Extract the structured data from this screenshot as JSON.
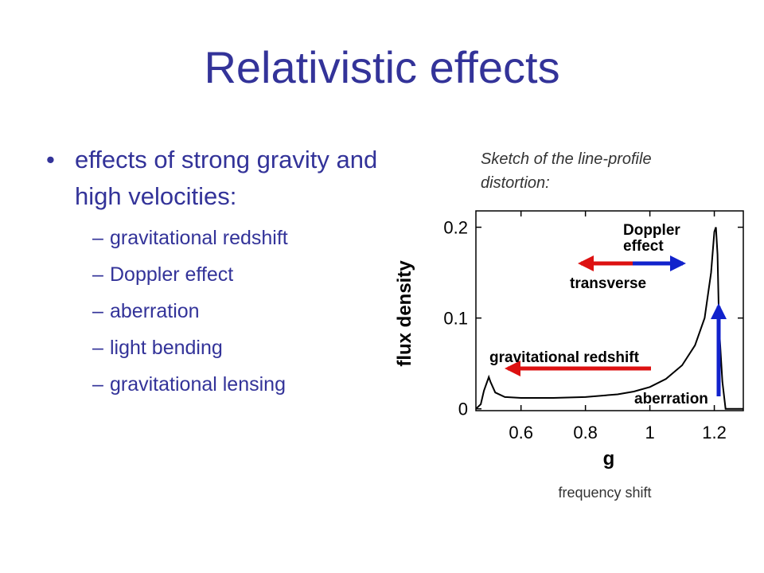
{
  "slide": {
    "title": "Relativistic effects",
    "bullet_marker": "•",
    "sub_marker": "–",
    "main_bullet": "effects of strong gravity and high velocities:",
    "sub_bullets": [
      "gravitational redshift",
      "Doppler effect",
      "aberration",
      "light bending",
      "gravitational lensing"
    ],
    "sketch_caption": "Sketch of the line-profile distortion:",
    "freq_caption": "frequency shift",
    "colors": {
      "text": "#333399",
      "arrow_red": "#dd1111",
      "arrow_blue": "#1122cc"
    }
  },
  "chart_data": {
    "type": "line",
    "xlabel": "g",
    "ylabel": "flux density",
    "xlim": [
      0.46,
      1.29
    ],
    "ylim": [
      -0.002,
      0.218
    ],
    "x_ticks": [
      0.6,
      0.8,
      1,
      1.2
    ],
    "x_tick_labels": [
      "0.6",
      "0.8",
      "1",
      "1.2"
    ],
    "y_ticks": [
      0,
      0.1,
      0.2
    ],
    "y_tick_labels": [
      "0",
      "0.1",
      "0.2"
    ],
    "grid": false,
    "series": [
      {
        "x": [
          0.46,
          0.475,
          0.485,
          0.5,
          0.505,
          0.52,
          0.55,
          0.6,
          0.7,
          0.8,
          0.9,
          0.95,
          1.0,
          1.05,
          1.1,
          1.14,
          1.17,
          1.19,
          1.2,
          1.205,
          1.21,
          1.215,
          1.225,
          1.235,
          1.29
        ],
        "y": [
          0,
          0.005,
          0.02,
          0.035,
          0.03,
          0.018,
          0.013,
          0.012,
          0.012,
          0.013,
          0.016,
          0.019,
          0.024,
          0.033,
          0.048,
          0.07,
          0.1,
          0.15,
          0.195,
          0.2,
          0.17,
          0.09,
          0.03,
          0,
          0
        ]
      }
    ],
    "annotations": {
      "doppler": "Doppler\neffect",
      "transverse": "transverse",
      "grav_redshift": "gravitational redshift",
      "aberration": "aberration"
    }
  }
}
